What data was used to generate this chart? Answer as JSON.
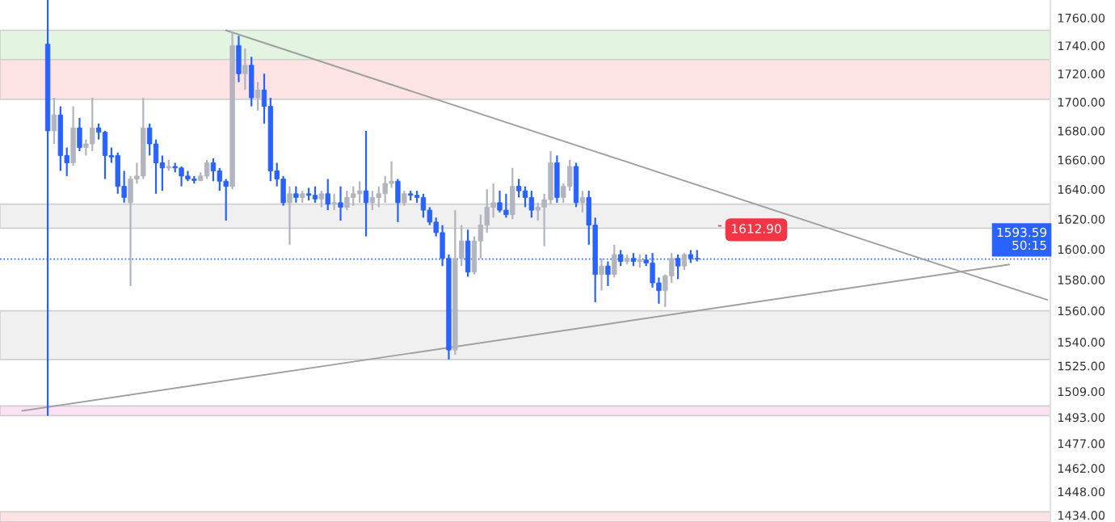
{
  "chart_data": {
    "type": "candlestick",
    "log": true,
    "categories": [
      null,
      null,
      null,
      null,
      null,
      null,
      null,
      null,
      null,
      null,
      null,
      null,
      null,
      null,
      null,
      null,
      null,
      null,
      null,
      null,
      null,
      null,
      null,
      null,
      null,
      null,
      null,
      null,
      null,
      null,
      null,
      null,
      null,
      null,
      null,
      null,
      null,
      null,
      null,
      null,
      null,
      null,
      null,
      null,
      null,
      null,
      null,
      null,
      null,
      null,
      null,
      null,
      null,
      null,
      null,
      null,
      null,
      null,
      null,
      null,
      null,
      null,
      null,
      null,
      null,
      null,
      null,
      null,
      null,
      null,
      null,
      null,
      null,
      null,
      null,
      null,
      null,
      null,
      null,
      null,
      null,
      null,
      null,
      null,
      null,
      null,
      null,
      null,
      null,
      null,
      null,
      null,
      null,
      null,
      null,
      null,
      null,
      null,
      null,
      null,
      null,
      null,
      null,
      null,
      null,
      null,
      null,
      null,
      null,
      null,
      null,
      null,
      null,
      null,
      null,
      null,
      null,
      null,
      null,
      null,
      null,
      null,
      null,
      null,
      null,
      null,
      null,
      null,
      null,
      null,
      null,
      null,
      null,
      null,
      null,
      null,
      null,
      null,
      null,
      null,
      null,
      null,
      null,
      null,
      null,
      null,
      null,
      null,
      null,
      null,
      null,
      null,
      null,
      null,
      null,
      null,
      null,
      null,
      null,
      null,
      null,
      null,
      null,
      null,
      null
    ],
    "ohlc": [
      null,
      null,
      null,
      null,
      null,
      null,
      null,
      [
        1741,
        1773,
        1494,
        1680
      ],
      [
        1680,
        1703,
        1671,
        1691
      ],
      [
        1691,
        1697,
        1652.5,
        1663
      ],
      [
        1663,
        1668.5,
        1649,
        1658
      ],
      [
        1658,
        1697,
        1656,
        1682
      ],
      [
        1682,
        1689,
        1666,
        1668.5
      ],
      [
        1668.5,
        1674,
        1663,
        1671
      ],
      [
        1671,
        1703,
        1666,
        1682
      ],
      [
        1682,
        1685,
        1674,
        1679
      ],
      [
        1679,
        1680,
        1647,
        1663
      ],
      [
        1663,
        1668.5,
        1658,
        1662
      ],
      [
        1663,
        1665,
        1637,
        1642
      ],
      [
        1642,
        1652.5,
        1631,
        1634.5
      ],
      [
        1631,
        1649,
        1576,
        1647
      ],
      [
        1647,
        1658,
        1644,
        1649
      ],
      [
        1649,
        1703,
        1647,
        1682
      ],
      [
        1682,
        1685,
        1663,
        1671
      ],
      [
        1671,
        1674,
        1637,
        1658
      ],
      [
        1658,
        1663,
        1639,
        1654.5
      ],
      [
        1654.5,
        1660,
        1652.5,
        1655.5
      ],
      [
        1655.5,
        1658,
        1651.5,
        1654.5
      ],
      [
        1654.5,
        1655.5,
        1642,
        1649
      ],
      [
        1649,
        1652.5,
        1645.5,
        1647
      ],
      [
        1647,
        1649,
        1644,
        1646
      ],
      [
        1646,
        1651.5,
        1645.5,
        1649
      ],
      [
        1649,
        1660,
        1647,
        1658
      ],
      [
        1658,
        1661,
        1645.5,
        1652.5
      ],
      [
        1652.5,
        1654.5,
        1639,
        1645.5
      ],
      [
        1645.5,
        1647,
        1619,
        1642
      ],
      [
        1642,
        1749.5,
        1640,
        1740
      ],
      [
        1740,
        1747,
        1714,
        1720
      ],
      [
        1720,
        1738,
        1708.5,
        1726
      ],
      [
        1726,
        1732,
        1697,
        1703
      ],
      [
        1703,
        1714,
        1694,
        1708.5
      ],
      [
        1708.5,
        1720,
        1685,
        1697
      ],
      [
        1697,
        1703,
        1645.5,
        1652.5
      ],
      [
        1652.5,
        1658,
        1642,
        1647
      ],
      [
        1647,
        1649,
        1629,
        1631
      ],
      [
        1631,
        1642,
        1603,
        1637
      ],
      [
        1637,
        1642,
        1631,
        1634.5
      ],
      [
        1634.5,
        1639,
        1631,
        1637
      ],
      [
        1637,
        1641,
        1632.5,
        1636
      ],
      [
        1636,
        1642,
        1631,
        1633.5
      ],
      [
        1633.5,
        1639,
        1628,
        1637
      ],
      [
        1637,
        1647,
        1626,
        1630
      ],
      [
        1630,
        1637,
        1626,
        1631
      ],
      [
        1631,
        1642,
        1619,
        1628
      ],
      [
        1628,
        1639,
        1626,
        1634.5
      ],
      [
        1634.5,
        1642,
        1629,
        1637
      ],
      [
        1637,
        1645.5,
        1631,
        1639
      ],
      [
        1639,
        1680,
        1608.5,
        1631
      ],
      [
        1631,
        1639,
        1626,
        1634.5
      ],
      [
        1634.5,
        1642,
        1628,
        1637
      ],
      [
        1637,
        1649,
        1631,
        1644
      ],
      [
        1644,
        1659,
        1641,
        1645.5
      ],
      [
        1645.5,
        1647,
        1618,
        1631
      ],
      [
        1631,
        1639,
        1629,
        1637
      ],
      [
        1637,
        1639,
        1632.5,
        1636
      ],
      [
        1636,
        1639,
        1631,
        1634.5
      ],
      [
        1634.5,
        1637,
        1621,
        1626
      ],
      [
        1626,
        1628,
        1616,
        1618
      ],
      [
        1618,
        1621,
        1608.5,
        1611
      ],
      [
        1611,
        1616,
        1589,
        1594
      ],
      [
        1594,
        1596.5,
        1529,
        1535
      ],
      [
        1535,
        1626,
        1532,
        1594
      ],
      [
        1594,
        1616,
        1589,
        1605.5
      ],
      [
        1605.5,
        1613,
        1582,
        1585
      ],
      [
        1585,
        1608.5,
        1583.5,
        1605.5
      ],
      [
        1605.5,
        1623,
        1594,
        1616
      ],
      [
        1616,
        1640,
        1611,
        1628
      ],
      [
        1628,
        1644,
        1621,
        1631
      ],
      [
        1631,
        1639,
        1624.5,
        1626
      ],
      [
        1626,
        1637,
        1621,
        1623
      ],
      [
        1623,
        1654.5,
        1620,
        1642
      ],
      [
        1642,
        1647,
        1634.5,
        1639
      ],
      [
        1639,
        1642,
        1628,
        1634.5
      ],
      [
        1634.5,
        1639,
        1621,
        1626
      ],
      [
        1626,
        1631,
        1619,
        1628
      ],
      [
        1628,
        1637,
        1602,
        1633
      ],
      [
        1633,
        1666,
        1630,
        1658
      ],
      [
        1658,
        1663,
        1631,
        1634.5
      ],
      [
        1634.5,
        1644,
        1631,
        1642
      ],
      [
        1642,
        1660,
        1639,
        1655.5
      ],
      [
        1655.5,
        1658,
        1628,
        1631
      ],
      [
        1631,
        1639,
        1624.5,
        1634.5
      ],
      [
        1634.5,
        1639,
        1603,
        1616
      ],
      [
        1616,
        1621,
        1565.5,
        1583.5
      ],
      [
        1583.5,
        1594,
        1573,
        1589
      ],
      [
        1589,
        1592,
        1576,
        1583.5
      ],
      [
        1583.5,
        1603,
        1581.5,
        1596.5
      ],
      [
        1596.5,
        1599.5,
        1589,
        1592
      ],
      [
        1592,
        1596.5,
        1590,
        1594
      ],
      [
        1594,
        1597.5,
        1589,
        1592
      ],
      [
        1592,
        1596.5,
        1588,
        1593
      ],
      [
        1593,
        1596.5,
        1589,
        1591
      ],
      [
        1591,
        1597.5,
        1575,
        1578
      ],
      [
        1578,
        1581.5,
        1564.5,
        1573
      ],
      [
        1573,
        1583.5,
        1562.5,
        1582.5
      ],
      [
        1582.5,
        1597.5,
        1578,
        1594
      ],
      [
        1594,
        1596.5,
        1580.5,
        1589
      ],
      [
        1589,
        1597.5,
        1586.5,
        1596.5
      ],
      [
        1596.5,
        1599.5,
        1591,
        1594
      ],
      [
        1594,
        1599.5,
        1592,
        1593.59
      ],
      null,
      null,
      null,
      null,
      null,
      null,
      null,
      null,
      null,
      null,
      null,
      null,
      null,
      null,
      null,
      null,
      null,
      null,
      null,
      null,
      null,
      null,
      null,
      null,
      null,
      null,
      null,
      null,
      null,
      null,
      null,
      null,
      null,
      null,
      null,
      null,
      null,
      null,
      null,
      null,
      null,
      null,
      null,
      null,
      null,
      null,
      null,
      null,
      null,
      null,
      null,
      null,
      null,
      null,
      null
    ],
    "colors": [
      null,
      null,
      null,
      null,
      null,
      null,
      null,
      "#2962ff",
      "#b2b5be",
      "#2962ff",
      "#2962ff",
      "#b2b5be",
      "#2962ff",
      "#b2b5be",
      "#b2b5be",
      "#2962ff",
      "#2962ff",
      "#2962ff",
      "#2962ff",
      "#2962ff",
      "#b2b5be",
      "#b2b5be",
      "#b2b5be",
      "#2962ff",
      "#2962ff",
      "#2962ff",
      "#b2b5be",
      "#2962ff",
      "#2962ff",
      "#2962ff",
      "#2962ff",
      "#b2b5be",
      "#b2b5be",
      "#2962ff",
      "#2962ff",
      "#2962ff",
      "#b2b5be",
      "#2962ff",
      "#b2b5be",
      "#2962ff",
      "#b2b5be",
      "#2962ff",
      "#2962ff",
      "#2962ff",
      "#2962ff",
      "#b2b5be",
      "#2962ff",
      "#b2b5be",
      "#2962ff",
      "#2962ff",
      "#b2b5be",
      "#2962ff",
      "#b2b5be",
      "#2962ff",
      "#b2b5be",
      "#b2b5be",
      "#b2b5be",
      "#2962ff",
      "#b2b5be",
      "#b2b5be",
      "#b2b5be",
      "#b2b5be",
      "#2962ff",
      "#b2b5be",
      "#2962ff",
      "#2962ff",
      "#2962ff",
      "#2962ff",
      "#2962ff",
      "#2962ff",
      "#2962ff",
      "#b2b5be",
      "#b2b5be",
      "#2962ff",
      "#b2b5be",
      "#b2b5be",
      "#b2b5be",
      "#b2b5be",
      "#2962ff",
      "#2962ff",
      "#b2b5be",
      "#2962ff",
      "#2962ff",
      "#2962ff",
      "#b2b5be",
      "#b2b5be",
      "#b2b5be",
      "#2962ff",
      "#b2b5be",
      "#b2b5be",
      "#2962ff",
      "#b2b5be",
      "#2962ff",
      "#2962ff",
      "#b2b5be",
      "#2962ff",
      "#b2b5be",
      "#2962ff",
      "#b2b5be",
      "#2962ff",
      "#b2b5be",
      "#2962ff",
      "#2962ff",
      "#2962ff",
      "#b2b5be",
      "#b2b5be",
      "#2962ff",
      "#b2b5be",
      "#2962ff",
      "#2962ff",
      null,
      null,
      null,
      null,
      null,
      null,
      null,
      null,
      null,
      null,
      null,
      null,
      null,
      null,
      null,
      null,
      null,
      null,
      null,
      null,
      null,
      null,
      null,
      null,
      null,
      null,
      null,
      null,
      null,
      null,
      null,
      null,
      null,
      null,
      null,
      null,
      null,
      null,
      null,
      null,
      null,
      null,
      null,
      null,
      null,
      null,
      null,
      null,
      null,
      null,
      null,
      null,
      null,
      null,
      null
    ],
    "series": [
      {
        "type": "line",
        "color": "#a0a0a0",
        "values": [
          null,
          null,
          null,
          null,
          null,
          null,
          null,
          null,
          null,
          null,
          null,
          null,
          null,
          null,
          null,
          null,
          null,
          null,
          null,
          null,
          null,
          null,
          null,
          null,
          null,
          null,
          null,
          null,
          null,
          null,
          null,
          null,
          null,
          null,
          null,
          1751,
          null,
          null,
          null,
          null,
          null,
          null,
          null,
          null,
          null,
          null,
          null,
          null,
          null,
          null,
          null,
          null,
          null,
          null,
          null,
          null,
          null,
          null,
          null,
          null,
          null,
          null,
          null,
          null,
          null,
          null,
          null,
          null,
          null,
          null,
          null,
          null,
          null,
          null,
          null,
          null,
          null,
          null,
          null,
          null,
          null,
          null,
          null,
          null,
          null,
          null,
          null,
          null,
          null,
          null,
          null,
          null,
          null,
          null,
          null,
          null,
          null,
          null,
          null,
          null,
          null,
          null,
          null,
          null,
          null,
          null,
          null,
          null,
          null,
          null,
          null,
          null,
          null,
          null,
          null,
          null,
          null,
          null,
          null,
          null,
          null,
          null,
          null,
          null,
          null,
          null,
          null,
          null,
          null,
          null,
          null,
          null,
          null,
          null,
          null,
          null,
          null,
          null,
          null,
          null,
          null,
          null,
          null,
          null,
          null,
          null,
          null,
          null,
          null,
          null,
          null,
          null,
          null,
          null,
          null,
          null,
          null,
          null,
          null,
          null,
          null,
          null,
          null,
          null,
          1567
        ]
      },
      {
        "type": "line",
        "color": "#a0a0a0",
        "values": [
          null,
          null,
          null,
          1497,
          null,
          null,
          null,
          null,
          null,
          null,
          null,
          null,
          null,
          null,
          null,
          null,
          null,
          null,
          null,
          null,
          null,
          null,
          null,
          null,
          null,
          null,
          null,
          null,
          null,
          null,
          null,
          null,
          null,
          null,
          null,
          null,
          null,
          null,
          null,
          null,
          null,
          null,
          null,
          null,
          null,
          null,
          null,
          null,
          null,
          null,
          null,
          null,
          null,
          null,
          null,
          null,
          null,
          null,
          null,
          null,
          null,
          null,
          null,
          null,
          null,
          null,
          null,
          null,
          null,
          null,
          null,
          null,
          null,
          null,
          null,
          null,
          null,
          null,
          null,
          null,
          null,
          null,
          null,
          null,
          null,
          null,
          null,
          null,
          null,
          null,
          null,
          null,
          null,
          null,
          null,
          null,
          null,
          null,
          null,
          null,
          null,
          null,
          null,
          null,
          null,
          null,
          null,
          null,
          null,
          null,
          null,
          null,
          null,
          null,
          null,
          null,
          null,
          null,
          null,
          null,
          null,
          null,
          null,
          null,
          null,
          null,
          null,
          null,
          null,
          null,
          null,
          null,
          null,
          null,
          null,
          null,
          null,
          null,
          null,
          null,
          null,
          null,
          null,
          null,
          null,
          null,
          null,
          null,
          null,
          null,
          null,
          null,
          null,
          null,
          null,
          null,
          null,
          null,
          1590,
          null,
          null,
          null,
          null,
          null,
          null
        ]
      }
    ],
    "ylim": [
      1430,
      1773
    ],
    "yticks": [
      {
        "value": 1760,
        "label": "1760.00"
      },
      {
        "value": 1740,
        "label": "1740.00"
      },
      {
        "value": 1720,
        "label": "1720.00"
      },
      {
        "value": 1700,
        "label": "1700.00"
      },
      {
        "value": 1680,
        "label": "1680.00"
      },
      {
        "value": 1660,
        "label": "1660.00"
      },
      {
        "value": 1640,
        "label": "1640.00"
      },
      {
        "value": 1620,
        "label": "1620.00"
      },
      {
        "value": 1600,
        "label": "1600.00"
      },
      {
        "value": 1580,
        "label": "1580.00"
      },
      {
        "value": 1560,
        "label": "1560.00"
      },
      {
        "value": 1540,
        "label": "1540.00"
      },
      {
        "value": 1525,
        "label": "1525.00"
      },
      {
        "value": 1509,
        "label": "1509.00"
      },
      {
        "value": 1493,
        "label": "1493.00"
      },
      {
        "value": 1477,
        "label": "1477.00"
      },
      {
        "value": 1462,
        "label": "1462.00"
      },
      {
        "value": 1448,
        "label": "1448.00"
      },
      {
        "value": 1434,
        "label": "1434.00"
      }
    ],
    "tick_labels": "y",
    "bands": [
      {
        "axis": "y",
        "from": 1720,
        "to": 1751,
        "color": "#e3f4e1"
      },
      {
        "axis": "y",
        "from": 1702,
        "to": 1730,
        "color": "#fde3e3"
      },
      {
        "axis": "y",
        "from": 1614,
        "to": 1630,
        "color": "#f0f0f0"
      },
      {
        "axis": "y",
        "from": 1529,
        "to": 1560,
        "color": "#f0f0f0"
      },
      {
        "axis": "y",
        "from": 1494,
        "to": 1500,
        "color": "#fbe1f3"
      },
      {
        "axis": "y",
        "from": 1430,
        "to": 1436,
        "color": "#fde3e3"
      }
    ],
    "ref_lines": [
      {
        "axis": "y",
        "value": 1593.59,
        "label": "1593.59",
        "color": "#2962ff",
        "line_style": "dotted"
      }
    ],
    "annotations": [
      "50:15",
      {
        "text": "1612.90",
        "y": 1612.9
      }
    ]
  }
}
